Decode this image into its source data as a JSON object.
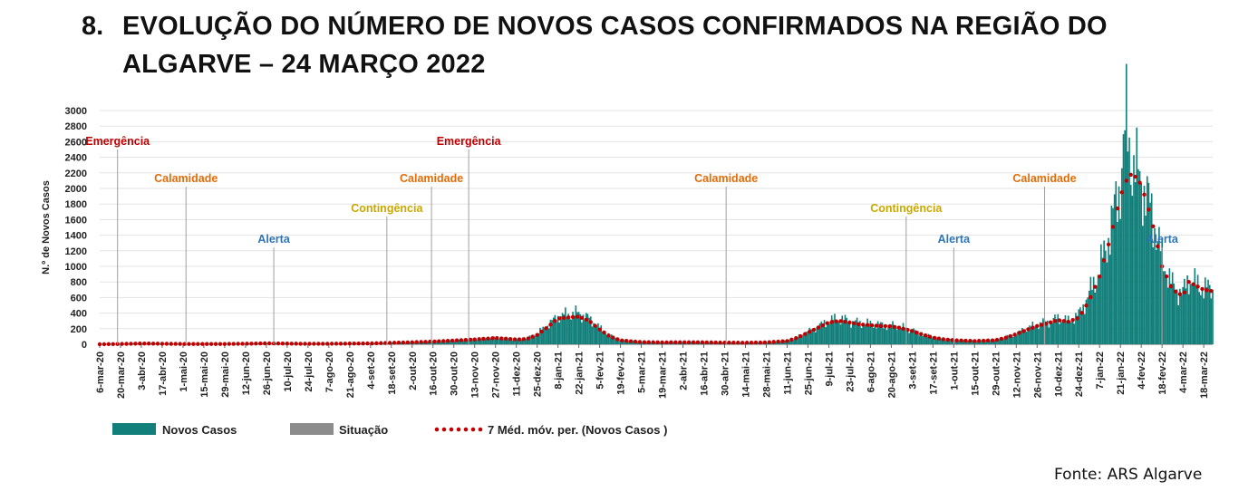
{
  "heading": {
    "number": "8.",
    "title": "EVOLUÇÃO DO NÚMERO DE NOVOS CASOS CONFIRMADOS NA REGIÃO DO ALGARVE – 24 MARÇO 2022"
  },
  "source": "Fonte: ARS Algarve",
  "colors": {
    "bars": "#127f7a",
    "situation": "#8c8c8c",
    "moving_average": "#c00000",
    "emergencia": "#c00000",
    "calamidade": "#e36c09",
    "contingencia": "#c9a800",
    "alerta": "#2e75b6",
    "grid": "#e3e3e3",
    "marker_line": "#a0a0a0"
  },
  "chart_data": {
    "type": "bar",
    "ylabel": "N.º de Novos Casos",
    "xlabel": "",
    "ylim": [
      0,
      3000
    ],
    "yticks": [
      0,
      200,
      400,
      600,
      800,
      1000,
      1200,
      1400,
      1600,
      1800,
      2000,
      2200,
      2400,
      2600,
      2800,
      3000
    ],
    "grid": true,
    "legend_position": "bottom-left",
    "x_range": [
      "2020-03-06",
      "2022-03-24"
    ],
    "x_tick_labels": [
      "6-mar-20",
      "20-mar-20",
      "3-abr-20",
      "17-abr-20",
      "1-mai-20",
      "15-mai-20",
      "29-mai-20",
      "12-jun-20",
      "26-jun-20",
      "10-jul-20",
      "24-jul-20",
      "7-ago-20",
      "21-ago-20",
      "4-set-20",
      "18-set-20",
      "2-out-20",
      "16-out-20",
      "30-out-20",
      "13-nov-20",
      "27-nov-20",
      "11-dez-20",
      "25-dez-20",
      "8-jan-21",
      "22-jan-21",
      "5-fev-21",
      "19-fev-21",
      "5-mar-21",
      "19-mar-21",
      "2-abr-21",
      "16-abr-21",
      "30-abr-21",
      "14-mai-21",
      "28-mai-21",
      "11-jun-21",
      "25-jun-21",
      "9-jul-21",
      "23-jul-21",
      "6-ago-21",
      "20-ago-21",
      "3-set-21",
      "17-set-21",
      "1-out-21",
      "15-out-21",
      "29-out-21",
      "12-nov-21",
      "26-nov-21",
      "10-dez-21",
      "24-dez-21",
      "7-jan-22",
      "21-jan-22",
      "4-fev-22",
      "18-fev-22",
      "4-mar-22",
      "18-mar-22"
    ],
    "legend": [
      "Novos Casos",
      "Situação",
      "7 Méd. móv. per. (Novos Casos )"
    ],
    "series": [
      {
        "name": "Novos Casos",
        "kind": "bar",
        "points": [
          [
            "2020-03-06",
            0
          ],
          [
            "2020-03-20",
            6
          ],
          [
            "2020-04-03",
            12
          ],
          [
            "2020-04-17",
            8
          ],
          [
            "2020-05-01",
            5
          ],
          [
            "2020-05-15",
            3
          ],
          [
            "2020-05-29",
            4
          ],
          [
            "2020-06-12",
            8
          ],
          [
            "2020-06-26",
            14
          ],
          [
            "2020-07-10",
            10
          ],
          [
            "2020-07-24",
            6
          ],
          [
            "2020-08-07",
            8
          ],
          [
            "2020-08-21",
            10
          ],
          [
            "2020-09-04",
            12
          ],
          [
            "2020-09-18",
            20
          ],
          [
            "2020-10-02",
            28
          ],
          [
            "2020-10-16",
            38
          ],
          [
            "2020-10-30",
            50
          ],
          [
            "2020-11-13",
            65
          ],
          [
            "2020-11-27",
            85
          ],
          [
            "2020-12-04",
            70
          ],
          [
            "2020-12-11",
            60
          ],
          [
            "2020-12-18",
            70
          ],
          [
            "2020-12-25",
            140
          ],
          [
            "2021-01-01",
            240
          ],
          [
            "2021-01-08",
            360
          ],
          [
            "2021-01-15",
            380
          ],
          [
            "2021-01-22",
            400
          ],
          [
            "2021-01-29",
            330
          ],
          [
            "2021-02-05",
            210
          ],
          [
            "2021-02-12",
            110
          ],
          [
            "2021-02-19",
            55
          ],
          [
            "2021-03-05",
            30
          ],
          [
            "2021-03-19",
            25
          ],
          [
            "2021-04-02",
            28
          ],
          [
            "2021-04-16",
            26
          ],
          [
            "2021-04-30",
            22
          ],
          [
            "2021-05-14",
            20
          ],
          [
            "2021-05-28",
            25
          ],
          [
            "2021-06-11",
            45
          ],
          [
            "2021-06-18",
            90
          ],
          [
            "2021-06-25",
            160
          ],
          [
            "2021-07-02",
            230
          ],
          [
            "2021-07-09",
            300
          ],
          [
            "2021-07-16",
            330
          ],
          [
            "2021-07-23",
            300
          ],
          [
            "2021-07-30",
            270
          ],
          [
            "2021-08-06",
            260
          ],
          [
            "2021-08-13",
            250
          ],
          [
            "2021-08-20",
            240
          ],
          [
            "2021-08-27",
            220
          ],
          [
            "2021-09-03",
            180
          ],
          [
            "2021-09-10",
            130
          ],
          [
            "2021-09-17",
            90
          ],
          [
            "2021-09-24",
            70
          ],
          [
            "2021-10-01",
            55
          ],
          [
            "2021-10-15",
            45
          ],
          [
            "2021-10-29",
            55
          ],
          [
            "2021-11-05",
            90
          ],
          [
            "2021-11-12",
            140
          ],
          [
            "2021-11-19",
            200
          ],
          [
            "2021-11-26",
            250
          ],
          [
            "2021-12-03",
            290
          ],
          [
            "2021-12-10",
            330
          ],
          [
            "2021-12-17",
            300
          ],
          [
            "2021-12-24",
            380
          ],
          [
            "2021-12-31",
            650
          ],
          [
            "2022-01-07",
            950
          ],
          [
            "2022-01-14",
            1450
          ],
          [
            "2022-01-21",
            2100
          ],
          [
            "2022-01-25",
            2850
          ],
          [
            "2022-01-29",
            2300
          ],
          [
            "2022-02-04",
            2100
          ],
          [
            "2022-02-11",
            1700
          ],
          [
            "2022-02-18",
            1100
          ],
          [
            "2022-02-25",
            750
          ],
          [
            "2022-03-04",
            650
          ],
          [
            "2022-03-08",
            850
          ],
          [
            "2022-03-12",
            780
          ],
          [
            "2022-03-18",
            720
          ],
          [
            "2022-03-24",
            700
          ]
        ]
      },
      {
        "name": "7 Méd. móv. per. (Novos Casos )",
        "kind": "dotted_line",
        "points": [
          [
            "2020-03-06",
            0
          ],
          [
            "2020-03-20",
            4
          ],
          [
            "2020-04-03",
            10
          ],
          [
            "2020-04-17",
            7
          ],
          [
            "2020-05-01",
            4
          ],
          [
            "2020-05-15",
            3
          ],
          [
            "2020-05-29",
            4
          ],
          [
            "2020-06-12",
            7
          ],
          [
            "2020-06-26",
            12
          ],
          [
            "2020-07-10",
            9
          ],
          [
            "2020-07-24",
            6
          ],
          [
            "2020-08-07",
            7
          ],
          [
            "2020-08-21",
            9
          ],
          [
            "2020-09-04",
            11
          ],
          [
            "2020-09-18",
            18
          ],
          [
            "2020-10-02",
            26
          ],
          [
            "2020-10-16",
            35
          ],
          [
            "2020-10-30",
            48
          ],
          [
            "2020-11-13",
            62
          ],
          [
            "2020-11-27",
            80
          ],
          [
            "2020-12-04",
            72
          ],
          [
            "2020-12-11",
            62
          ],
          [
            "2020-12-18",
            68
          ],
          [
            "2020-12-25",
            120
          ],
          [
            "2021-01-01",
            220
          ],
          [
            "2021-01-08",
            330
          ],
          [
            "2021-01-15",
            345
          ],
          [
            "2021-01-22",
            355
          ],
          [
            "2021-01-29",
            300
          ],
          [
            "2021-02-05",
            190
          ],
          [
            "2021-02-12",
            100
          ],
          [
            "2021-02-19",
            50
          ],
          [
            "2021-03-05",
            28
          ],
          [
            "2021-03-19",
            24
          ],
          [
            "2021-04-02",
            26
          ],
          [
            "2021-04-16",
            25
          ],
          [
            "2021-04-30",
            21
          ],
          [
            "2021-05-14",
            20
          ],
          [
            "2021-05-28",
            24
          ],
          [
            "2021-06-11",
            42
          ],
          [
            "2021-06-18",
            85
          ],
          [
            "2021-06-25",
            150
          ],
          [
            "2021-07-02",
            215
          ],
          [
            "2021-07-09",
            280
          ],
          [
            "2021-07-16",
            300
          ],
          [
            "2021-07-23",
            280
          ],
          [
            "2021-07-30",
            255
          ],
          [
            "2021-08-06",
            245
          ],
          [
            "2021-08-13",
            235
          ],
          [
            "2021-08-20",
            230
          ],
          [
            "2021-08-27",
            205
          ],
          [
            "2021-09-03",
            170
          ],
          [
            "2021-09-10",
            125
          ],
          [
            "2021-09-17",
            85
          ],
          [
            "2021-09-24",
            65
          ],
          [
            "2021-10-01",
            52
          ],
          [
            "2021-10-15",
            42
          ],
          [
            "2021-10-29",
            52
          ],
          [
            "2021-11-05",
            85
          ],
          [
            "2021-11-12",
            130
          ],
          [
            "2021-11-19",
            185
          ],
          [
            "2021-11-26",
            235
          ],
          [
            "2021-12-03",
            270
          ],
          [
            "2021-12-10",
            310
          ],
          [
            "2021-12-17",
            290
          ],
          [
            "2021-12-24",
            340
          ],
          [
            "2021-12-31",
            560
          ],
          [
            "2022-01-07",
            870
          ],
          [
            "2022-01-14",
            1350
          ],
          [
            "2022-01-21",
            1900
          ],
          [
            "2022-01-25",
            2100
          ],
          [
            "2022-01-29",
            2200
          ],
          [
            "2022-02-04",
            2050
          ],
          [
            "2022-02-11",
            1600
          ],
          [
            "2022-02-18",
            1000
          ],
          [
            "2022-02-25",
            700
          ],
          [
            "2022-03-04",
            620
          ],
          [
            "2022-03-08",
            800
          ],
          [
            "2022-03-12",
            760
          ],
          [
            "2022-03-18",
            700
          ],
          [
            "2022-03-24",
            680
          ]
        ]
      }
    ],
    "annotations": [
      {
        "label": "Emergência",
        "date": "2020-03-18",
        "category": "emergencia"
      },
      {
        "label": "Calamidade",
        "date": "2020-05-03",
        "category": "calamidade"
      },
      {
        "label": "Alerta",
        "date": "2020-07-01",
        "category": "alerta"
      },
      {
        "label": "Contingência",
        "date": "2020-09-15",
        "category": "contingencia"
      },
      {
        "label": "Calamidade",
        "date": "2020-10-15",
        "category": "calamidade"
      },
      {
        "label": "Emergência",
        "date": "2020-11-09",
        "category": "emergencia"
      },
      {
        "label": "Calamidade",
        "date": "2021-05-01",
        "category": "calamidade"
      },
      {
        "label": "Contingência",
        "date": "2021-08-30",
        "category": "contingencia"
      },
      {
        "label": "Alerta",
        "date": "2021-10-01",
        "category": "alerta"
      },
      {
        "label": "Calamidade",
        "date": "2021-12-01",
        "category": "calamidade"
      },
      {
        "label": "Alerta",
        "date": "2022-02-18",
        "category": "alerta"
      }
    ]
  }
}
